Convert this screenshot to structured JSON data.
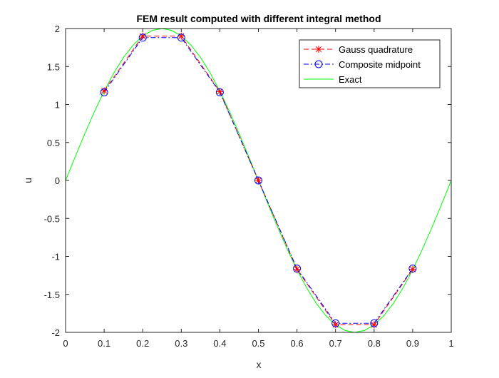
{
  "chart_data": {
    "type": "line",
    "title": "FEM result computed with different integral method",
    "xlabel": "x",
    "ylabel": "u",
    "xlim": [
      0,
      1
    ],
    "ylim": [
      -2,
      2
    ],
    "xticks": [
      0,
      0.1,
      0.2,
      0.3,
      0.4,
      0.5,
      0.6,
      0.7,
      0.8,
      0.9,
      1
    ],
    "xtick_labels": [
      "0",
      "0.1",
      "0.2",
      "0.3",
      "0.4",
      "0.5",
      "0.6",
      "0.7",
      "0.8",
      "0.9",
      "1"
    ],
    "yticks": [
      -2,
      -1.5,
      -1,
      -0.5,
      0,
      0.5,
      1,
      1.5,
      2
    ],
    "ytick_labels": [
      "-2",
      "-1.5",
      "-1",
      "-0.5",
      "0",
      "0.5",
      "1",
      "1.5",
      "2"
    ],
    "grid": false,
    "legend_position": "top-right",
    "series": [
      {
        "name": "Gauss quadrature",
        "color": "#ff0000",
        "style": "dashed",
        "marker": "asterisk",
        "x": [
          0.1,
          0.2,
          0.3,
          0.4,
          0.5,
          0.6,
          0.7,
          0.8,
          0.9
        ],
        "y": [
          1.18,
          1.9,
          1.9,
          1.17,
          0,
          -1.17,
          -1.9,
          -1.9,
          -1.17
        ]
      },
      {
        "name": "Composite midpoint",
        "color": "#0000ff",
        "style": "dashdot",
        "marker": "circle",
        "x": [
          0.1,
          0.2,
          0.3,
          0.4,
          0.5,
          0.6,
          0.7,
          0.8,
          0.9
        ],
        "y": [
          1.16,
          1.88,
          1.88,
          1.16,
          0,
          -1.16,
          -1.88,
          -1.88,
          -1.16
        ]
      },
      {
        "name": "Exact",
        "color": "#00ff00",
        "style": "solid",
        "marker": "none",
        "function": "2*sin(2*pi*x)",
        "x": [
          0,
          0.025,
          0.05,
          0.075,
          0.1,
          0.125,
          0.15,
          0.175,
          0.2,
          0.225,
          0.25,
          0.275,
          0.3,
          0.325,
          0.35,
          0.375,
          0.4,
          0.425,
          0.45,
          0.475,
          0.5,
          0.525,
          0.55,
          0.575,
          0.6,
          0.625,
          0.65,
          0.675,
          0.7,
          0.725,
          0.75,
          0.775,
          0.8,
          0.825,
          0.85,
          0.875,
          0.9,
          0.925,
          0.95,
          0.975,
          1
        ],
        "y": [
          0,
          0.313,
          0.618,
          0.908,
          1.176,
          1.414,
          1.618,
          1.782,
          1.902,
          1.975,
          2,
          1.975,
          1.902,
          1.782,
          1.618,
          1.414,
          1.176,
          0.908,
          0.618,
          0.313,
          0,
          -0.313,
          -0.618,
          -0.908,
          -1.176,
          -1.414,
          -1.618,
          -1.782,
          -1.902,
          -1.975,
          -2,
          -1.975,
          -1.902,
          -1.782,
          -1.618,
          -1.414,
          -1.176,
          -0.908,
          -0.618,
          -0.313,
          0
        ]
      }
    ]
  }
}
